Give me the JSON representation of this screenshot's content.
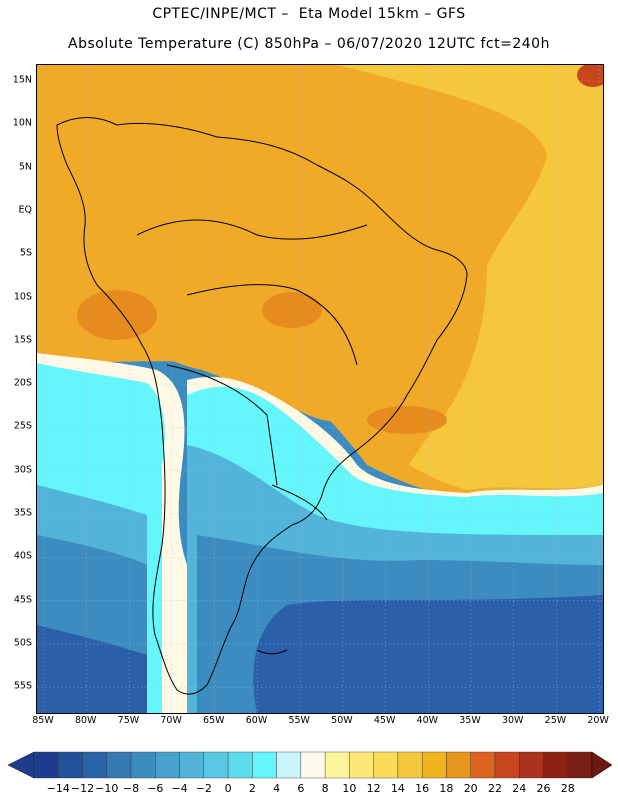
{
  "header": {
    "line1": "CPTEC/INPE/MCT –  Eta Model 15km – GFS",
    "line2": "Absolute Temperature (C) 850hPa – 06/07/2020 12UTC fct=240h"
  },
  "axes": {
    "lat_labels": [
      "15N",
      "10N",
      "5N",
      "EQ",
      "5S",
      "10S",
      "15S",
      "20S",
      "25S",
      "30S",
      "35S",
      "40S",
      "45S",
      "50S",
      "55S"
    ],
    "lon_labels": [
      "85W",
      "80W",
      "75W",
      "70W",
      "65W",
      "60W",
      "55W",
      "50W",
      "45W",
      "40W",
      "35W",
      "30W",
      "25W",
      "20W"
    ]
  },
  "colorbar": {
    "labels": [
      "-14",
      "-12",
      "-10",
      "-8",
      "-6",
      "-4",
      "-2",
      "0",
      "2",
      "4",
      "6",
      "8",
      "10",
      "12",
      "14",
      "16",
      "18",
      "20",
      "22",
      "24",
      "26",
      "28"
    ],
    "colors": [
      "#1e3c8c",
      "#23509b",
      "#2a64a8",
      "#3478b4",
      "#3c8cc0",
      "#48a0cc",
      "#52b4d8",
      "#5ac8e2",
      "#5cdcec",
      "#64f6fa",
      "#c8f4fa",
      "#fffaeb",
      "#fff59a",
      "#fde878",
      "#fadc5a",
      "#f5c83c",
      "#f0b41e",
      "#e6961e",
      "#dc641e",
      "#c8461e",
      "#aa321e",
      "#8c2314",
      "#781e14"
    ]
  },
  "map": {
    "colors": {
      "ocean_deep": "#2a5faa",
      "ocean_mid": "#3c8cc0",
      "ocean_light": "#52b4d8",
      "cyan": "#64f6fa",
      "pale": "#fff9e6",
      "yellow": "#f5c83c",
      "orange": "#f0aa28",
      "dark_orange": "#e68c1e",
      "hot": "#c8461e",
      "border": "#000000",
      "grid": "#b4b4b4"
    }
  }
}
